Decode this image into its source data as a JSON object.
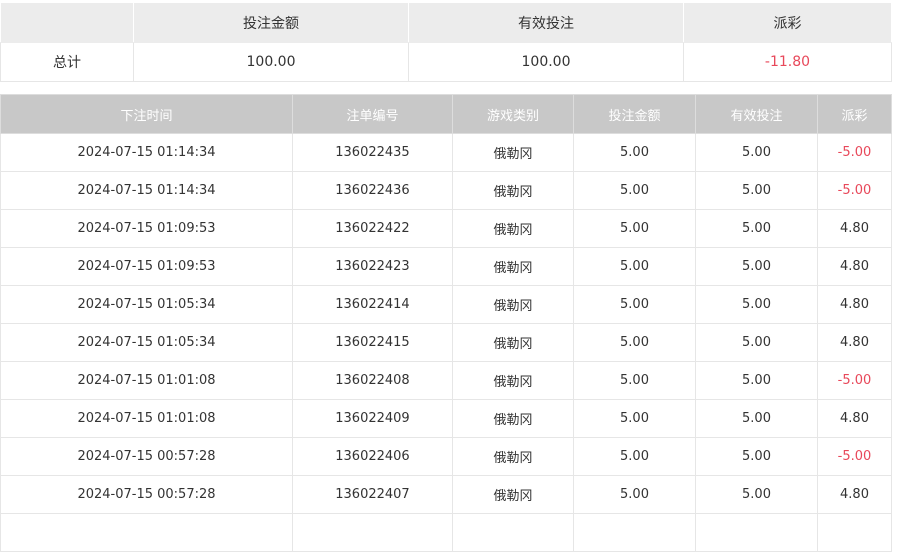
{
  "summary": {
    "headers": [
      "",
      "投注金额",
      "有效投注",
      "派彩"
    ],
    "row": {
      "label": "总计",
      "bet_amount": "100.00",
      "valid_bet": "100.00",
      "payout": "-11.80"
    }
  },
  "records": {
    "headers": [
      "下注时间",
      "注单编号",
      "游戏类别",
      "投注金额",
      "有效投注",
      "派彩"
    ],
    "rows": [
      [
        "2024-07-15 01:14:34",
        "136022435",
        "俄勒冈",
        "5.00",
        "5.00",
        "-5.00"
      ],
      [
        "2024-07-15 01:14:34",
        "136022436",
        "俄勒冈",
        "5.00",
        "5.00",
        "-5.00"
      ],
      [
        "2024-07-15 01:09:53",
        "136022422",
        "俄勒冈",
        "5.00",
        "5.00",
        "4.80"
      ],
      [
        "2024-07-15 01:09:53",
        "136022423",
        "俄勒冈",
        "5.00",
        "5.00",
        "4.80"
      ],
      [
        "2024-07-15 01:05:34",
        "136022414",
        "俄勒冈",
        "5.00",
        "5.00",
        "4.80"
      ],
      [
        "2024-07-15 01:05:34",
        "136022415",
        "俄勒冈",
        "5.00",
        "5.00",
        "4.80"
      ],
      [
        "2024-07-15 01:01:08",
        "136022408",
        "俄勒冈",
        "5.00",
        "5.00",
        "-5.00"
      ],
      [
        "2024-07-15 01:01:08",
        "136022409",
        "俄勒冈",
        "5.00",
        "5.00",
        "4.80"
      ],
      [
        "2024-07-15 00:57:28",
        "136022406",
        "俄勒冈",
        "5.00",
        "5.00",
        "-5.00"
      ],
      [
        "2024-07-15 00:57:28",
        "136022407",
        "俄勒冈",
        "5.00",
        "5.00",
        "4.80"
      ]
    ]
  },
  "colors": {
    "negative": "#e8485a",
    "summary_header_bg": "#ececec",
    "records_header_bg": "#c8c8c8"
  }
}
